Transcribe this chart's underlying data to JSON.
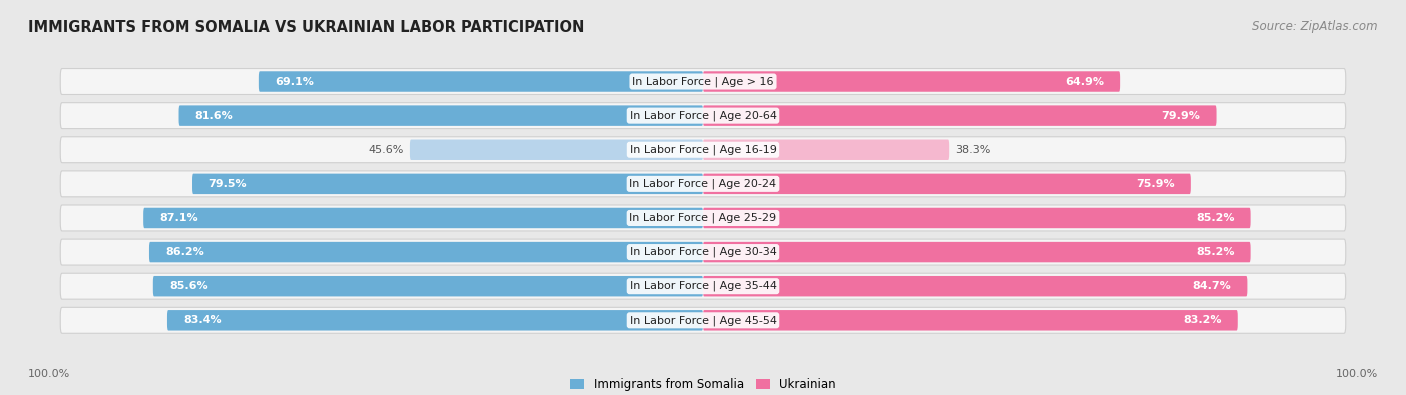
{
  "title": "IMMIGRANTS FROM SOMALIA VS UKRAINIAN LABOR PARTICIPATION",
  "source": "Source: ZipAtlas.com",
  "categories": [
    "In Labor Force | Age > 16",
    "In Labor Force | Age 20-64",
    "In Labor Force | Age 16-19",
    "In Labor Force | Age 20-24",
    "In Labor Force | Age 25-29",
    "In Labor Force | Age 30-34",
    "In Labor Force | Age 35-44",
    "In Labor Force | Age 45-54"
  ],
  "somalia_values": [
    69.1,
    81.6,
    45.6,
    79.5,
    87.1,
    86.2,
    85.6,
    83.4
  ],
  "ukrainian_values": [
    64.9,
    79.9,
    38.3,
    75.9,
    85.2,
    85.2,
    84.7,
    83.2
  ],
  "somalia_color": "#6aaed6",
  "somalia_light_color": "#b8d4eb",
  "ukrainian_color": "#f070a0",
  "ukrainian_light_color": "#f5b8cf",
  "background_color": "#e8e8e8",
  "row_bg_color": "#f5f5f5",
  "row_border_color": "#d0d0d0",
  "label_fontsize": 8.0,
  "value_fontsize": 8.0,
  "title_fontsize": 10.5,
  "source_fontsize": 8.5,
  "legend_fontsize": 8.5,
  "axis_label_fontsize": 8.0,
  "max_value": 100.0
}
